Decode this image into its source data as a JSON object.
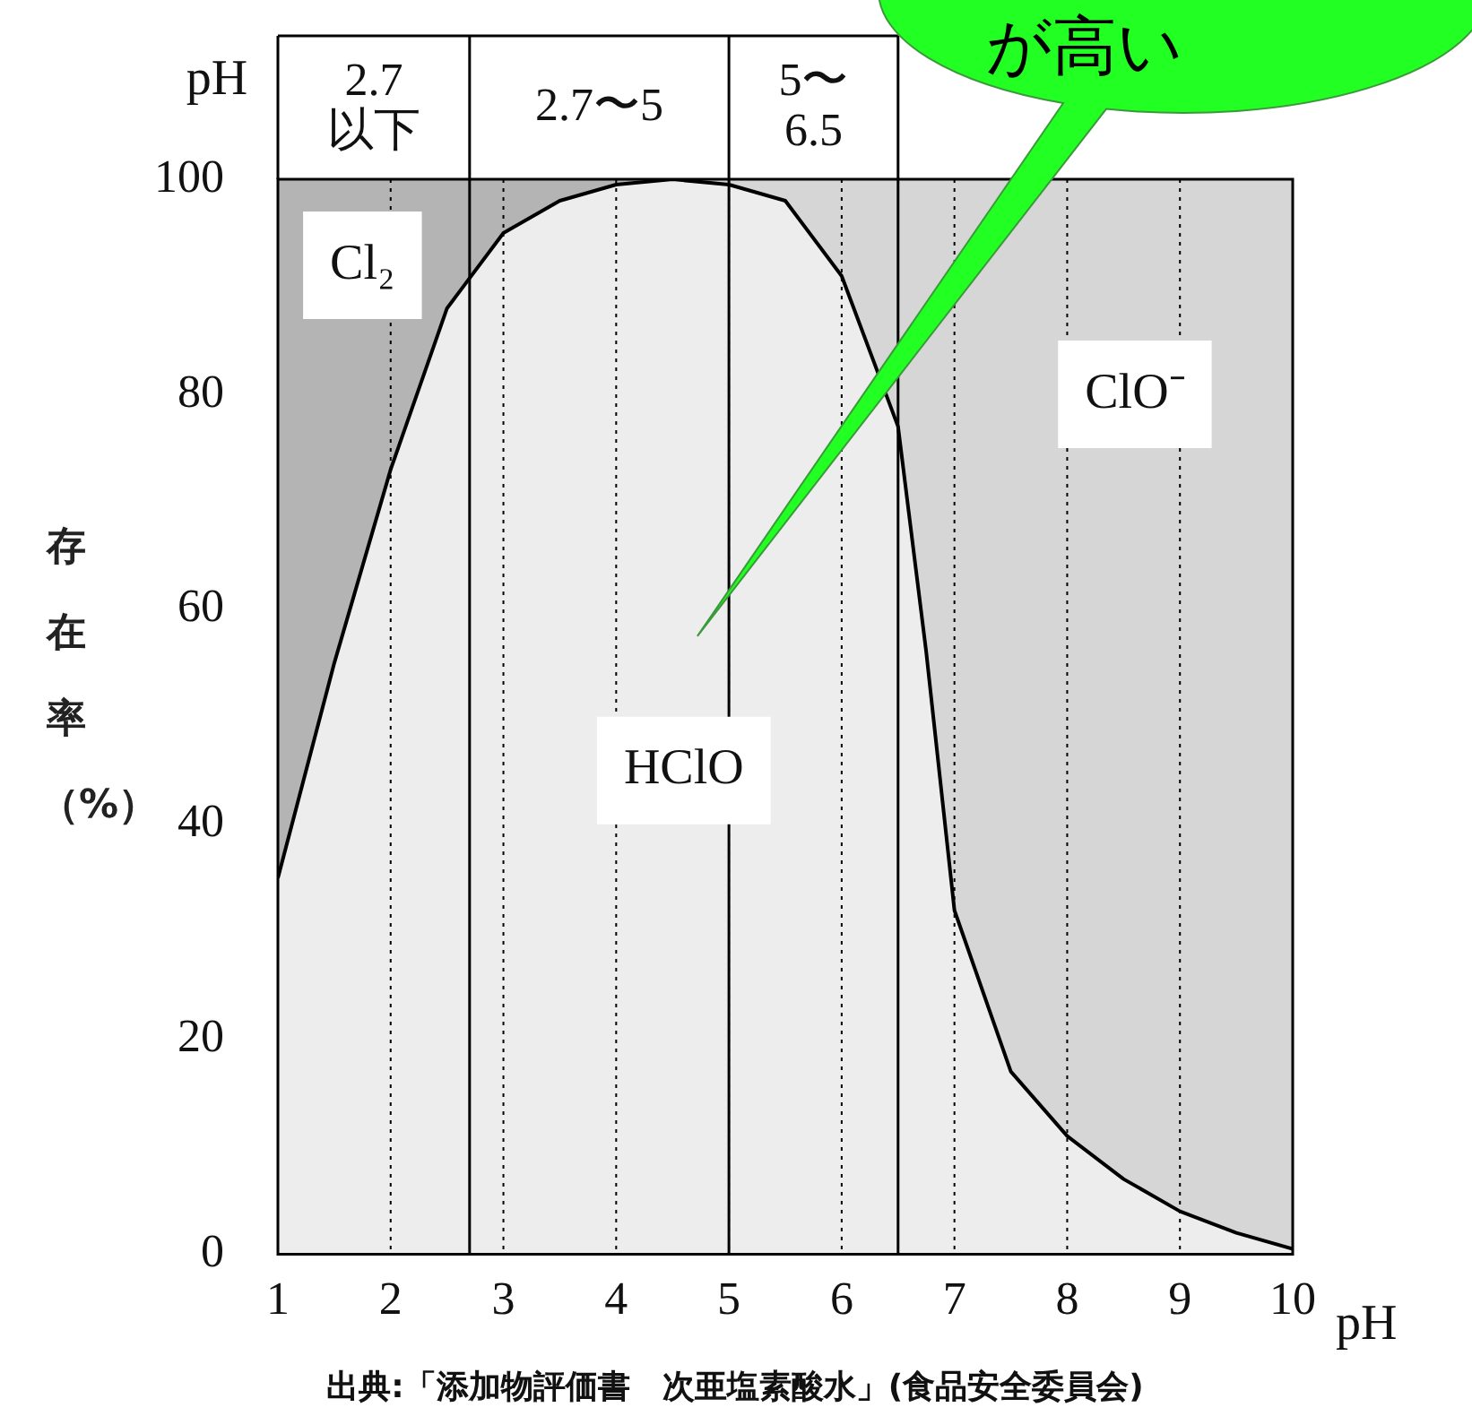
{
  "chart_data": {
    "type": "area",
    "ylabel": "存在率（%）",
    "xlabel": "pH",
    "x": [
      1,
      1.5,
      2,
      2.5,
      3,
      3.5,
      4,
      4.5,
      5,
      5.5,
      6,
      6.5,
      6.75,
      7,
      7.5,
      8,
      8.5,
      9,
      9.5,
      10
    ],
    "stacked": true,
    "series": [
      {
        "name": "HClO",
        "color": "#ededed",
        "values": [
          35,
          55,
          73,
          88,
          95,
          98,
          99.5,
          100,
          99.5,
          98,
          91,
          77,
          56,
          32,
          17,
          11,
          7,
          4,
          2,
          0.5
        ]
      },
      {
        "name": "Cl₂",
        "color": "#b4b4b4",
        "values": [
          65,
          45,
          27,
          12,
          5,
          2,
          0.5,
          0,
          null,
          null,
          null,
          null,
          null,
          null,
          null,
          null,
          null,
          null,
          null,
          null
        ]
      },
      {
        "name": "ClO⁻",
        "color": "#d6d6d6",
        "values": [
          null,
          null,
          null,
          null,
          null,
          null,
          null,
          0,
          0.5,
          2,
          9,
          23,
          44,
          68,
          83,
          89,
          93,
          96,
          98,
          99.5
        ]
      }
    ],
    "xlim": [
      1,
      10
    ],
    "xticks": [
      1,
      2,
      3,
      4,
      5,
      6,
      7,
      8,
      9,
      10
    ],
    "ylim": [
      0,
      100
    ],
    "yticks": [
      0,
      20,
      40,
      60,
      80,
      100
    ],
    "grid": "x",
    "legend": false,
    "marker": "none",
    "ref_lines": [
      {
        "axis": "x",
        "value": 2.7
      },
      {
        "axis": "x",
        "value": 5
      },
      {
        "axis": "x",
        "value": 6.5
      }
    ],
    "annotations": [
      "pH",
      "2.7\n以下",
      "2.7〜5",
      "5〜\n6.5",
      "が高い",
      "出典:「添加物評価書　次亜塩素酸水」(食品安全委員会)"
    ]
  }
}
